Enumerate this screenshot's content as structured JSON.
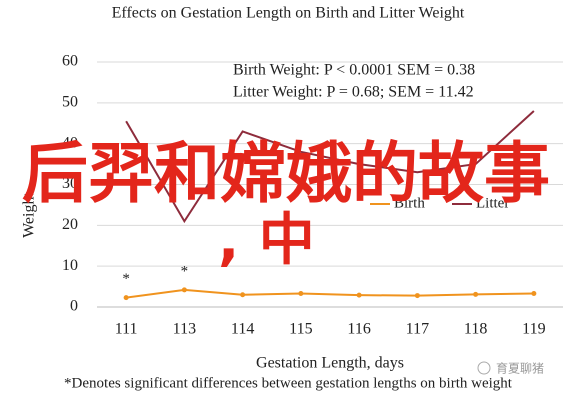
{
  "chart_data": {
    "type": "line",
    "title": "Effects on Gestation Length on Birth and Litter Weight",
    "x_label": "Gestation Length, days",
    "y_label": "Weight",
    "footnote": "*Denotes significant differences between gestation lengths on birth weight",
    "annotations": [
      "Birth Weight: P < 0.0001 SEM = 0.38",
      "Litter Weight: P = 0.68; SEM = 11.42"
    ],
    "categories": [
      "111",
      "113",
      "114",
      "115",
      "116",
      "117",
      "118",
      "119"
    ],
    "significance": [
      "*",
      "*",
      null,
      null,
      null,
      null,
      null,
      null
    ],
    "series": [
      {
        "name": "Birth",
        "color": "#f0931e",
        "values": [
          2.3,
          4.2,
          3.0,
          3.3,
          2.9,
          2.8,
          3.1,
          3.3
        ]
      },
      {
        "name": "Litter",
        "color": "#8e2c3c",
        "values": [
          45.5,
          21,
          43,
          38,
          35,
          33,
          35,
          48
        ]
      }
    ],
    "ylim": [
      0,
      60
    ],
    "yticks": [
      0,
      10,
      20,
      30,
      40,
      50,
      60
    ],
    "grid": true
  },
  "overlay": {
    "headline": "后羿和嫦娥的故事",
    "subline": ", 中",
    "watermark": "育夏聊猪"
  }
}
